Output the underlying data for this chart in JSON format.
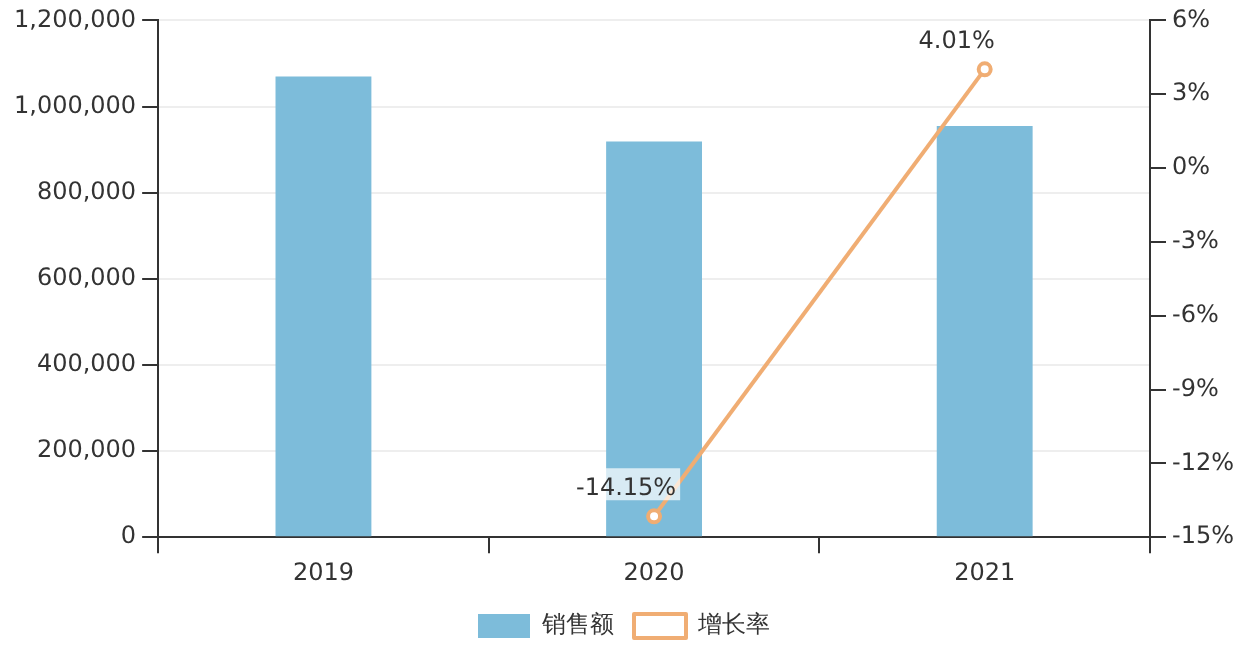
{
  "chart_data": {
    "type": "bar",
    "categories": [
      "2019",
      "2020",
      "2021"
    ],
    "series": [
      {
        "name": "销售额",
        "color": "#7dbcda",
        "values": [
          1070000,
          919000,
          955000
        ]
      },
      {
        "name": "增长率",
        "type": "line",
        "axis": "y2",
        "color": "#f0ad73",
        "values": [
          null,
          -14.15,
          4.01
        ],
        "value_labels": [
          null,
          "-14.15%",
          "4.01%"
        ],
        "marker": "circle"
      }
    ],
    "ylim": [
      0,
      1200000
    ],
    "yticks": [
      0,
      {
        "value": 200000,
        "label": "200,000"
      },
      {
        "value": 400000,
        "label": "400,000"
      },
      {
        "value": 600000,
        "label": "600,000"
      },
      {
        "value": 800000,
        "label": "800,000"
      },
      {
        "value": 1000000,
        "label": "1,000,000"
      },
      {
        "value": 1200000,
        "label": "1,200,000"
      }
    ],
    "y2lim": [
      -15,
      6
    ],
    "y2ticks": [
      {
        "value": -15,
        "label": "-15%"
      },
      {
        "value": -12,
        "label": "-12%"
      },
      {
        "value": -9,
        "label": "-9%"
      },
      {
        "value": -6,
        "label": "-6%"
      },
      {
        "value": -3,
        "label": "-3%"
      },
      {
        "value": 0,
        "label": "0%"
      },
      {
        "value": 3,
        "label": "3%"
      },
      {
        "value": 6,
        "label": "6%"
      }
    ],
    "grid": "y",
    "legend": "bottom"
  }
}
